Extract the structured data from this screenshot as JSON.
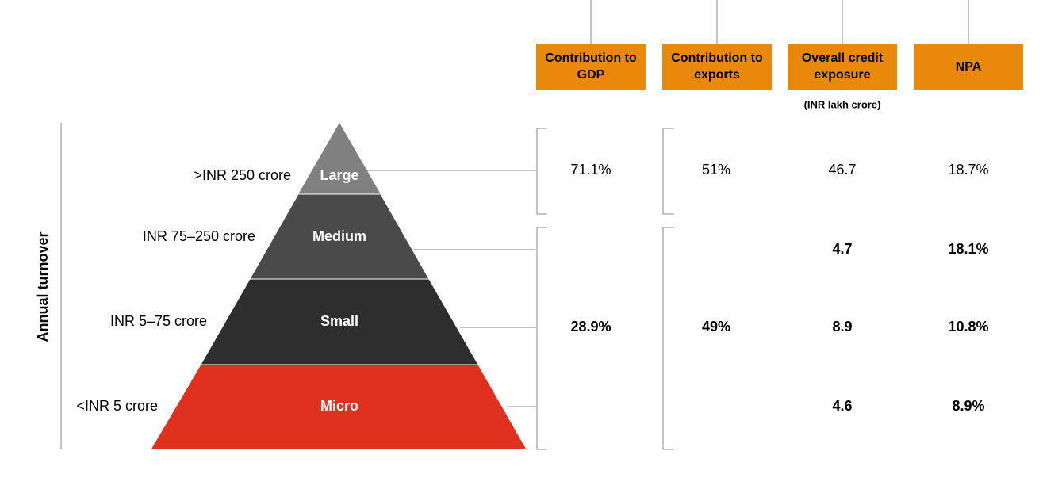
{
  "axis_label": "Annual turnover",
  "tiers": [
    {
      "name": "Large",
      "range": ">INR 250 crore"
    },
    {
      "name": "Medium",
      "range": "INR 75–250 crore"
    },
    {
      "name": "Small",
      "range": "INR 5–75 crore"
    },
    {
      "name": "Micro",
      "range": "<INR 5 crore"
    }
  ],
  "columns": [
    {
      "header": "Contribution to GDP",
      "large": "71.1%",
      "msme": "28.9%"
    },
    {
      "header": "Contribution to exports",
      "large": "51%",
      "msme": "49%"
    },
    {
      "header": "Overall credit exposure",
      "note": "(INR lakh crore)",
      "values": [
        "46.7",
        "4.7",
        "8.9",
        "4.6"
      ]
    },
    {
      "header": "NPA",
      "values": [
        "18.7%",
        "18.1%",
        "10.8%",
        "8.9%"
      ]
    }
  ]
}
